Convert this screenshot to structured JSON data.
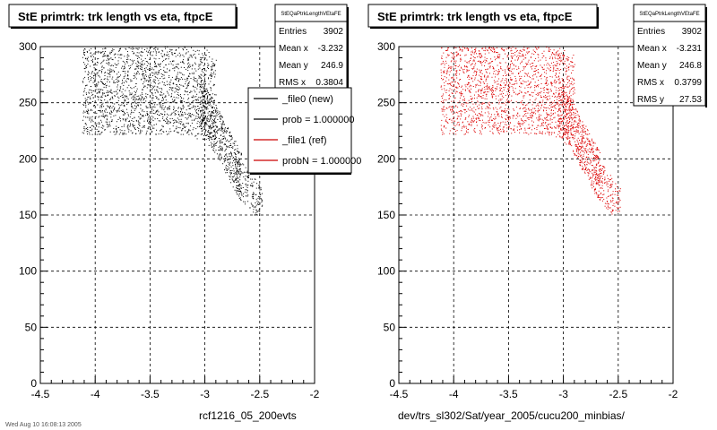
{
  "chart_data": [
    {
      "type": "scatter",
      "title": "StE primtrk: trk length vs eta, ftpcE",
      "xlabel": "rcf1216_05_200evts",
      "ylabel": "",
      "xlim": [
        -4.5,
        -2
      ],
      "ylim": [
        0,
        300
      ],
      "x_ticks": [
        "-4.5",
        "-4",
        "-3.5",
        "-3",
        "-2.5",
        "-2"
      ],
      "y_ticks": [
        "0",
        "50",
        "100",
        "150",
        "200",
        "250",
        "300"
      ],
      "grid": true,
      "marker_color": "#000000",
      "stats": {
        "name": "StEQaPtrkLengthVEtaFE",
        "rows": [
          {
            "label": "Entries",
            "value": "3902"
          },
          {
            "label": "Mean x",
            "value": "-3.232"
          },
          {
            "label": "Mean y",
            "value": "246.9"
          },
          {
            "label": "RMS x",
            "value": "0.3804"
          }
        ]
      },
      "legend": {
        "placement": "right",
        "entries": [
          {
            "label": "_file0 (new)",
            "color": "#000000"
          },
          {
            "label": "prob = 1.000000",
            "color": "#000000"
          },
          {
            "label": "_file1 (ref)",
            "color": "#cc0000"
          },
          {
            "label": "probN = 1.000000",
            "color": "#cc0000"
          }
        ]
      },
      "footer": "Wed Aug 10 16:08:13 2005"
    },
    {
      "type": "scatter",
      "title": "StE primtrk: trk length vs eta, ftpcE",
      "xlabel": "dev/trs_sl302/Sat/year_2005/cucu200_minbias/",
      "ylabel": "",
      "xlim": [
        -4.5,
        -2
      ],
      "ylim": [
        0,
        300
      ],
      "x_ticks": [
        "-4.5",
        "-4",
        "-3.5",
        "-3",
        "-2.5",
        "-2"
      ],
      "y_ticks": [
        "0",
        "50",
        "100",
        "150",
        "200",
        "250",
        "300"
      ],
      "grid": true,
      "marker_color": "#dd0000",
      "stats": {
        "name": "StEQaPtrkLengthVEtaFE",
        "rows": [
          {
            "label": "Entries",
            "value": "3902"
          },
          {
            "label": "Mean x",
            "value": "-3.231"
          },
          {
            "label": "Mean y",
            "value": "246.8"
          },
          {
            "label": "RMS x",
            "value": "0.3799"
          },
          {
            "label": "RMS y",
            "value": "27.53"
          }
        ]
      }
    }
  ]
}
